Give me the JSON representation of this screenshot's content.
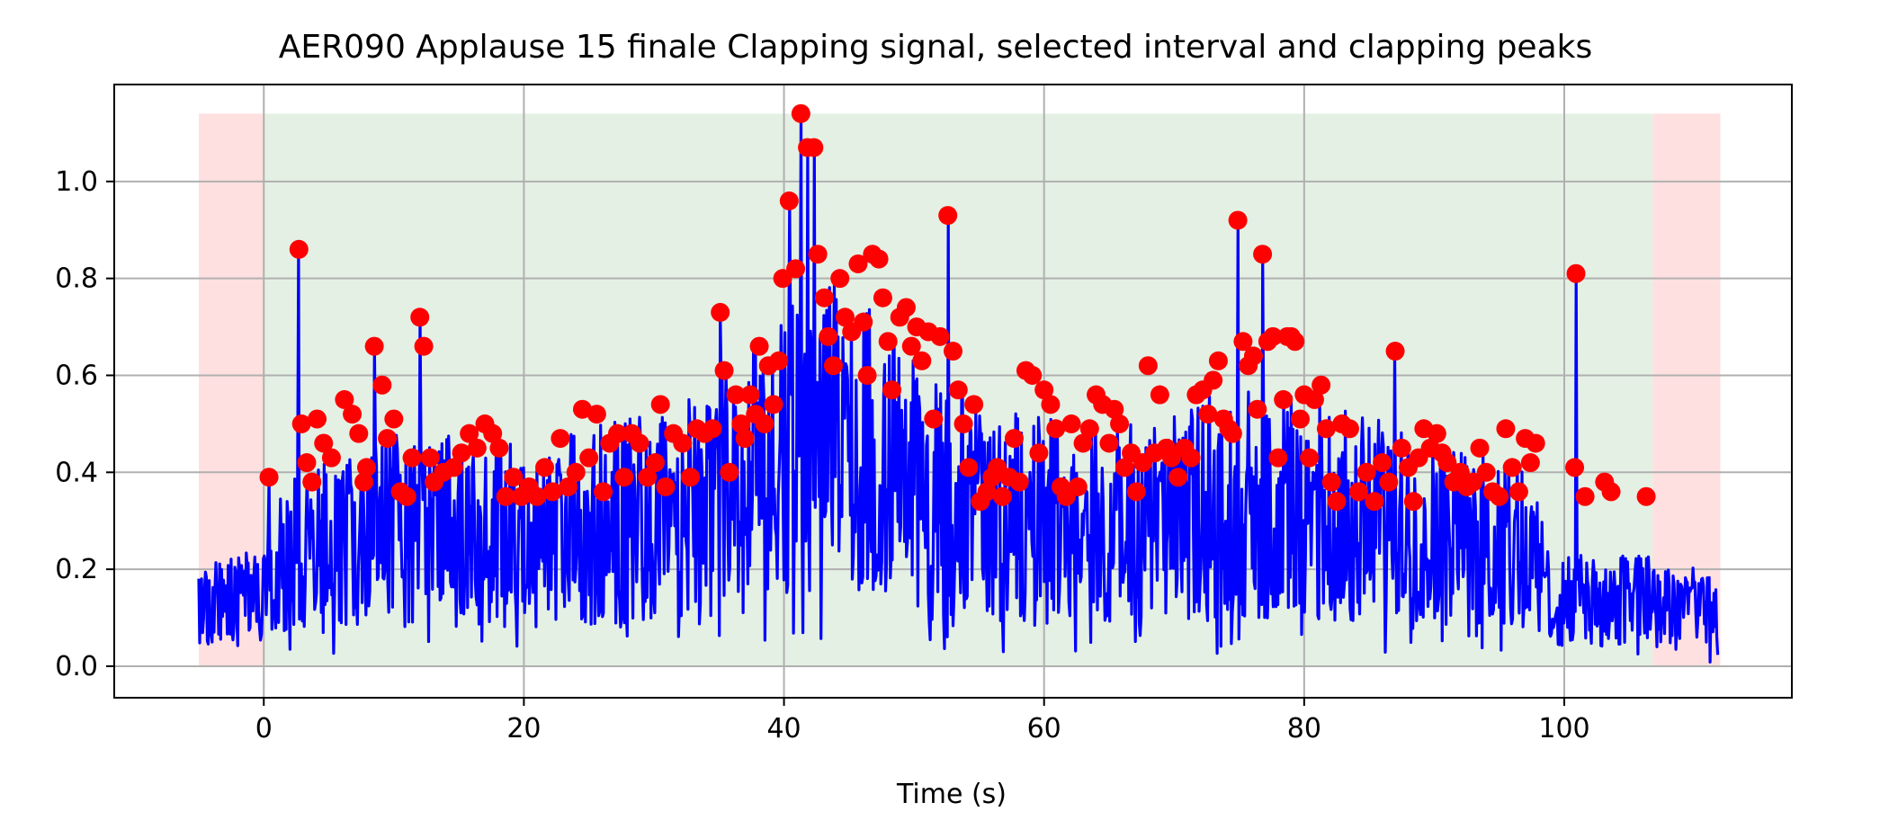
{
  "chart_data": {
    "type": "line",
    "title": "AER090 Applause 15 finale Clapping signal, selected interval and clapping peaks",
    "xlabel": "Time (s)",
    "ylabel": "",
    "xlim": [
      -11.5,
      117.5
    ],
    "ylim": [
      -0.065,
      1.2
    ],
    "grid": true,
    "x_ticks": [
      0,
      20,
      40,
      60,
      80,
      100
    ],
    "x_tick_labels": [
      "0",
      "20",
      "40",
      "60",
      "80",
      "100"
    ],
    "y_ticks": [
      0.0,
      0.2,
      0.4,
      0.6,
      0.8,
      1.0
    ],
    "y_tick_labels": [
      "0.0",
      "0.2",
      "0.4",
      "0.6",
      "0.8",
      "1.0"
    ],
    "shaded_regions": [
      {
        "type": "excluded",
        "x_start": -5.0,
        "x_end": 0.0,
        "y_top": 1.14,
        "color": "#ffe0e0"
      },
      {
        "type": "selected",
        "x_start": 0.0,
        "x_end": 106.8,
        "y_top": 1.14,
        "color": "#e4f0e4"
      },
      {
        "type": "excluded",
        "x_start": 106.8,
        "x_end": 112.0,
        "y_top": 1.14,
        "color": "#ffe0e0"
      }
    ],
    "signal": {
      "color": "#0000ff",
      "x_start": -5.0,
      "x_end": 111.8,
      "samples": 1600,
      "envelope": [
        [
          -5,
          0.14
        ],
        [
          0,
          0.17
        ],
        [
          2,
          0.28
        ],
        [
          10,
          0.34
        ],
        [
          20,
          0.32
        ],
        [
          30,
          0.36
        ],
        [
          36,
          0.42
        ],
        [
          40,
          0.52
        ],
        [
          43,
          0.58
        ],
        [
          47,
          0.5
        ],
        [
          52,
          0.42
        ],
        [
          58,
          0.36
        ],
        [
          66,
          0.34
        ],
        [
          75,
          0.4
        ],
        [
          80,
          0.38
        ],
        [
          88,
          0.34
        ],
        [
          97,
          0.3
        ],
        [
          99,
          0.16
        ],
        [
          106,
          0.16
        ],
        [
          111.8,
          0.13
        ]
      ],
      "sharp_spikes": [
        [
          0.4,
          0.39
        ],
        [
          2.7,
          0.86
        ],
        [
          8.5,
          0.66
        ],
        [
          12.0,
          0.72
        ],
        [
          35.1,
          0.73
        ],
        [
          40.4,
          0.96
        ],
        [
          41.3,
          1.14
        ],
        [
          41.8,
          1.07
        ],
        [
          42.3,
          1.07
        ],
        [
          52.6,
          0.93
        ],
        [
          74.9,
          0.92
        ],
        [
          76.8,
          0.85
        ],
        [
          87.0,
          0.65
        ],
        [
          100.9,
          0.81
        ]
      ]
    },
    "peaks": {
      "name": "clapping peaks",
      "color": "#ff0000",
      "points": [
        [
          0.4,
          0.39
        ],
        [
          2.7,
          0.86
        ],
        [
          2.9,
          0.5
        ],
        [
          3.3,
          0.42
        ],
        [
          3.7,
          0.38
        ],
        [
          4.1,
          0.51
        ],
        [
          4.6,
          0.46
        ],
        [
          5.2,
          0.43
        ],
        [
          6.2,
          0.55
        ],
        [
          6.8,
          0.52
        ],
        [
          7.3,
          0.48
        ],
        [
          7.7,
          0.38
        ],
        [
          7.9,
          0.41
        ],
        [
          8.5,
          0.66
        ],
        [
          9.1,
          0.58
        ],
        [
          9.5,
          0.47
        ],
        [
          10.0,
          0.51
        ],
        [
          10.5,
          0.36
        ],
        [
          11.0,
          0.35
        ],
        [
          11.4,
          0.43
        ],
        [
          12.0,
          0.72
        ],
        [
          12.3,
          0.66
        ],
        [
          12.8,
          0.43
        ],
        [
          13.1,
          0.38
        ],
        [
          13.8,
          0.4
        ],
        [
          14.6,
          0.41
        ],
        [
          15.2,
          0.44
        ],
        [
          15.8,
          0.48
        ],
        [
          16.4,
          0.45
        ],
        [
          17.0,
          0.5
        ],
        [
          17.6,
          0.48
        ],
        [
          18.1,
          0.45
        ],
        [
          18.6,
          0.35
        ],
        [
          19.2,
          0.39
        ],
        [
          19.8,
          0.35
        ],
        [
          20.4,
          0.37
        ],
        [
          21.0,
          0.35
        ],
        [
          21.6,
          0.41
        ],
        [
          22.2,
          0.36
        ],
        [
          22.8,
          0.47
        ],
        [
          23.4,
          0.37
        ],
        [
          24.0,
          0.4
        ],
        [
          24.5,
          0.53
        ],
        [
          25.0,
          0.43
        ],
        [
          25.6,
          0.52
        ],
        [
          26.1,
          0.36
        ],
        [
          26.6,
          0.46
        ],
        [
          27.2,
          0.48
        ],
        [
          27.7,
          0.39
        ],
        [
          28.3,
          0.48
        ],
        [
          28.9,
          0.46
        ],
        [
          29.5,
          0.39
        ],
        [
          30.1,
          0.42
        ],
        [
          30.5,
          0.54
        ],
        [
          30.9,
          0.37
        ],
        [
          31.5,
          0.48
        ],
        [
          32.2,
          0.46
        ],
        [
          32.8,
          0.39
        ],
        [
          33.3,
          0.49
        ],
        [
          33.9,
          0.48
        ],
        [
          34.5,
          0.49
        ],
        [
          35.1,
          0.73
        ],
        [
          35.4,
          0.61
        ],
        [
          35.8,
          0.4
        ],
        [
          36.3,
          0.56
        ],
        [
          36.7,
          0.5
        ],
        [
          37.0,
          0.47
        ],
        [
          37.4,
          0.56
        ],
        [
          37.8,
          0.52
        ],
        [
          38.1,
          0.66
        ],
        [
          38.5,
          0.5
        ],
        [
          38.8,
          0.62
        ],
        [
          39.2,
          0.54
        ],
        [
          39.6,
          0.63
        ],
        [
          39.9,
          0.8
        ],
        [
          40.4,
          0.96
        ],
        [
          40.9,
          0.82
        ],
        [
          41.3,
          1.14
        ],
        [
          41.8,
          1.07
        ],
        [
          42.3,
          1.07
        ],
        [
          42.6,
          0.85
        ],
        [
          43.1,
          0.76
        ],
        [
          43.4,
          0.68
        ],
        [
          43.8,
          0.62
        ],
        [
          44.3,
          0.8
        ],
        [
          44.7,
          0.72
        ],
        [
          45.2,
          0.69
        ],
        [
          45.7,
          0.83
        ],
        [
          46.1,
          0.71
        ],
        [
          46.4,
          0.6
        ],
        [
          46.8,
          0.85
        ],
        [
          47.3,
          0.84
        ],
        [
          47.6,
          0.76
        ],
        [
          48.0,
          0.67
        ],
        [
          48.3,
          0.57
        ],
        [
          48.9,
          0.72
        ],
        [
          49.4,
          0.74
        ],
        [
          49.8,
          0.66
        ],
        [
          50.2,
          0.7
        ],
        [
          50.6,
          0.63
        ],
        [
          51.1,
          0.69
        ],
        [
          51.5,
          0.51
        ],
        [
          52.0,
          0.68
        ],
        [
          52.6,
          0.93
        ],
        [
          53.0,
          0.65
        ],
        [
          53.4,
          0.57
        ],
        [
          53.8,
          0.5
        ],
        [
          54.2,
          0.41
        ],
        [
          54.6,
          0.54
        ],
        [
          55.1,
          0.34
        ],
        [
          55.6,
          0.36
        ],
        [
          56.0,
          0.39
        ],
        [
          56.4,
          0.41
        ],
        [
          56.8,
          0.35
        ],
        [
          57.3,
          0.39
        ],
        [
          57.7,
          0.47
        ],
        [
          58.1,
          0.38
        ],
        [
          58.6,
          0.61
        ],
        [
          59.1,
          0.6
        ],
        [
          59.6,
          0.44
        ],
        [
          60.0,
          0.57
        ],
        [
          60.5,
          0.54
        ],
        [
          60.9,
          0.49
        ],
        [
          61.3,
          0.37
        ],
        [
          61.7,
          0.35
        ],
        [
          62.1,
          0.5
        ],
        [
          62.6,
          0.37
        ],
        [
          63.0,
          0.46
        ],
        [
          63.5,
          0.49
        ],
        [
          64.0,
          0.56
        ],
        [
          64.5,
          0.54
        ],
        [
          65.0,
          0.46
        ],
        [
          65.4,
          0.53
        ],
        [
          65.8,
          0.5
        ],
        [
          66.2,
          0.41
        ],
        [
          66.7,
          0.44
        ],
        [
          67.1,
          0.36
        ],
        [
          67.6,
          0.42
        ],
        [
          68.0,
          0.62
        ],
        [
          68.5,
          0.44
        ],
        [
          68.9,
          0.56
        ],
        [
          69.4,
          0.45
        ],
        [
          69.8,
          0.43
        ],
        [
          70.3,
          0.39
        ],
        [
          70.8,
          0.45
        ],
        [
          71.3,
          0.43
        ],
        [
          71.7,
          0.56
        ],
        [
          72.2,
          0.57
        ],
        [
          72.6,
          0.52
        ],
        [
          73.0,
          0.59
        ],
        [
          73.4,
          0.63
        ],
        [
          73.8,
          0.51
        ],
        [
          74.2,
          0.49
        ],
        [
          74.5,
          0.48
        ],
        [
          74.9,
          0.92
        ],
        [
          75.3,
          0.67
        ],
        [
          75.7,
          0.62
        ],
        [
          76.1,
          0.64
        ],
        [
          76.4,
          0.53
        ],
        [
          76.8,
          0.85
        ],
        [
          77.2,
          0.67
        ],
        [
          77.6,
          0.68
        ],
        [
          78.0,
          0.43
        ],
        [
          78.4,
          0.55
        ],
        [
          78.7,
          0.68
        ],
        [
          79.0,
          0.68
        ],
        [
          79.3,
          0.67
        ],
        [
          79.7,
          0.51
        ],
        [
          80.0,
          0.56
        ],
        [
          80.4,
          0.43
        ],
        [
          80.8,
          0.55
        ],
        [
          81.3,
          0.58
        ],
        [
          81.7,
          0.49
        ],
        [
          82.1,
          0.38
        ],
        [
          82.5,
          0.34
        ],
        [
          82.9,
          0.5
        ],
        [
          83.5,
          0.49
        ],
        [
          84.2,
          0.36
        ],
        [
          84.8,
          0.4
        ],
        [
          85.4,
          0.34
        ],
        [
          86.0,
          0.42
        ],
        [
          86.5,
          0.38
        ],
        [
          87.0,
          0.65
        ],
        [
          87.5,
          0.45
        ],
        [
          88.0,
          0.41
        ],
        [
          88.4,
          0.34
        ],
        [
          88.8,
          0.43
        ],
        [
          89.2,
          0.49
        ],
        [
          89.7,
          0.45
        ],
        [
          90.2,
          0.48
        ],
        [
          90.6,
          0.44
        ],
        [
          91.0,
          0.42
        ],
        [
          91.5,
          0.38
        ],
        [
          92.0,
          0.4
        ],
        [
          92.5,
          0.37
        ],
        [
          93.0,
          0.38
        ],
        [
          93.5,
          0.45
        ],
        [
          94.0,
          0.4
        ],
        [
          94.5,
          0.36
        ],
        [
          95.0,
          0.35
        ],
        [
          95.5,
          0.49
        ],
        [
          96.0,
          0.41
        ],
        [
          96.5,
          0.36
        ],
        [
          97.0,
          0.47
        ],
        [
          97.4,
          0.42
        ],
        [
          97.8,
          0.46
        ],
        [
          100.8,
          0.41
        ],
        [
          100.9,
          0.81
        ],
        [
          101.6,
          0.35
        ],
        [
          103.1,
          0.38
        ],
        [
          103.6,
          0.36
        ],
        [
          106.3,
          0.35
        ]
      ]
    }
  }
}
